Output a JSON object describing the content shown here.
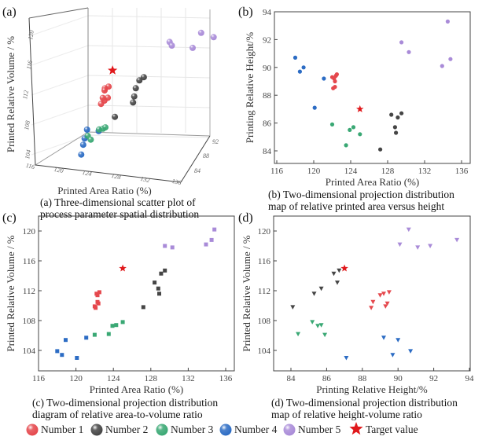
{
  "chart_data": {
    "type": "scatter",
    "series": [
      {
        "name": "Number 1",
        "color": "#e5484d",
        "points": [
          [
            122.0,
            89.3,
            109.9
          ],
          [
            122.1,
            88.5,
            109.7
          ],
          [
            122.2,
            89.2,
            111.6
          ],
          [
            122.3,
            89.0,
            111.4
          ],
          [
            122.4,
            89.4,
            110.3
          ],
          [
            122.5,
            89.5,
            111.8
          ],
          [
            122.3,
            88.6,
            110.5
          ]
        ]
      },
      {
        "name": "Number 2",
        "color": "#454545",
        "points": [
          [
            127.2,
            84.1,
            109.8
          ],
          [
            128.4,
            86.6,
            113.1
          ],
          [
            128.8,
            85.7,
            112.3
          ],
          [
            128.9,
            85.3,
            111.6
          ],
          [
            129.1,
            86.4,
            114.3
          ],
          [
            129.5,
            86.7,
            114.7
          ]
        ]
      },
      {
        "name": "Number 3",
        "color": "#3aa874",
        "points": [
          [
            122.0,
            85.9,
            106.1
          ],
          [
            123.5,
            84.4,
            106.2
          ],
          [
            123.9,
            85.5,
            107.3
          ],
          [
            124.3,
            85.7,
            107.4
          ],
          [
            125.0,
            85.2,
            107.8
          ]
        ]
      },
      {
        "name": "Number 4",
        "color": "#2c6cc4",
        "points": [
          [
            118.0,
            90.7,
            103.9
          ],
          [
            118.5,
            89.7,
            103.4
          ],
          [
            118.9,
            90.0,
            105.4
          ],
          [
            120.1,
            87.1,
            103.0
          ],
          [
            121.1,
            89.2,
            105.7
          ]
        ]
      },
      {
        "name": "Number 5",
        "color": "#a98bd8",
        "points": [
          [
            129.5,
            91.8,
            118.0
          ],
          [
            130.3,
            91.1,
            117.8
          ],
          [
            133.9,
            90.1,
            118.2
          ],
          [
            134.5,
            93.3,
            118.8
          ],
          [
            134.8,
            90.6,
            120.2
          ]
        ]
      }
    ],
    "target": {
      "name": "Target value",
      "color": "#e0181b",
      "point": [
        125,
        87,
        115
      ]
    },
    "panels": [
      {
        "id": "a",
        "label": "(a)",
        "type": "scatter3d",
        "xlabel": "Printed Area Ratio (%)",
        "ylabel": "Printed Relative Volume / %",
        "x_ticks": [
          "116",
          "120",
          "124",
          "128",
          "132",
          "136"
        ],
        "depth_ticks": [
          "84",
          "88",
          "92"
        ],
        "z_ticks": [
          "104",
          "108",
          "112",
          "116",
          "120"
        ],
        "caption": [
          "(a) Three-dimensional scatter plot of",
          "process parameter spatial distribution"
        ]
      },
      {
        "id": "b",
        "label": "(b)",
        "type": "scatter",
        "xlabel": "Printed Area Ratio (%)",
        "ylabel": "Printing Relative Height/%",
        "xlim": [
          116,
          136
        ],
        "ylim": [
          84,
          94
        ],
        "x_ticks": [
          "116",
          "120",
          "124",
          "128",
          "132",
          "136"
        ],
        "y_ticks": [
          "84",
          "86",
          "88",
          "90",
          "92",
          "94"
        ],
        "marker": "circle",
        "axes": [
          0,
          1
        ],
        "caption": [
          "(b) Two-dimensional projection distribution",
          "map of relative printed area versus height"
        ]
      },
      {
        "id": "c",
        "label": "(c)",
        "type": "scatter",
        "xlabel": "Printed Area Ratio (%)",
        "ylabel": "Printed Relative Volume / %",
        "xlim": [
          116,
          136
        ],
        "ylim": [
          104,
          120
        ],
        "x_ticks": [
          "116",
          "120",
          "124",
          "128",
          "132",
          "136"
        ],
        "y_ticks": [
          "104",
          "108",
          "112",
          "116",
          "120"
        ],
        "marker": "square",
        "axes": [
          0,
          2
        ],
        "caption": [
          "(c) Two-dimensional projection distribution",
          "diagram of relative area-to-volume ratio"
        ]
      },
      {
        "id": "d",
        "label": "(d)",
        "type": "scatter",
        "xlabel": "Printing Relative Height/%",
        "ylabel": "Printed Relative Volume / %",
        "xlim": [
          84,
          94
        ],
        "ylim": [
          104,
          120
        ],
        "x_ticks": [
          "84",
          "86",
          "88",
          "90",
          "92",
          "94"
        ],
        "y_ticks": [
          "104",
          "108",
          "112",
          "116",
          "120"
        ],
        "marker": "triangle-down",
        "axes": [
          1,
          2
        ],
        "caption": [
          "(d) Two-dimensional projection distribution",
          "map of relative height-volume ratio"
        ]
      }
    ]
  },
  "legend": {
    "items": [
      "Number 1",
      "Number 2",
      "Number 3",
      "Number 4",
      "Number 5",
      "Target value"
    ]
  }
}
